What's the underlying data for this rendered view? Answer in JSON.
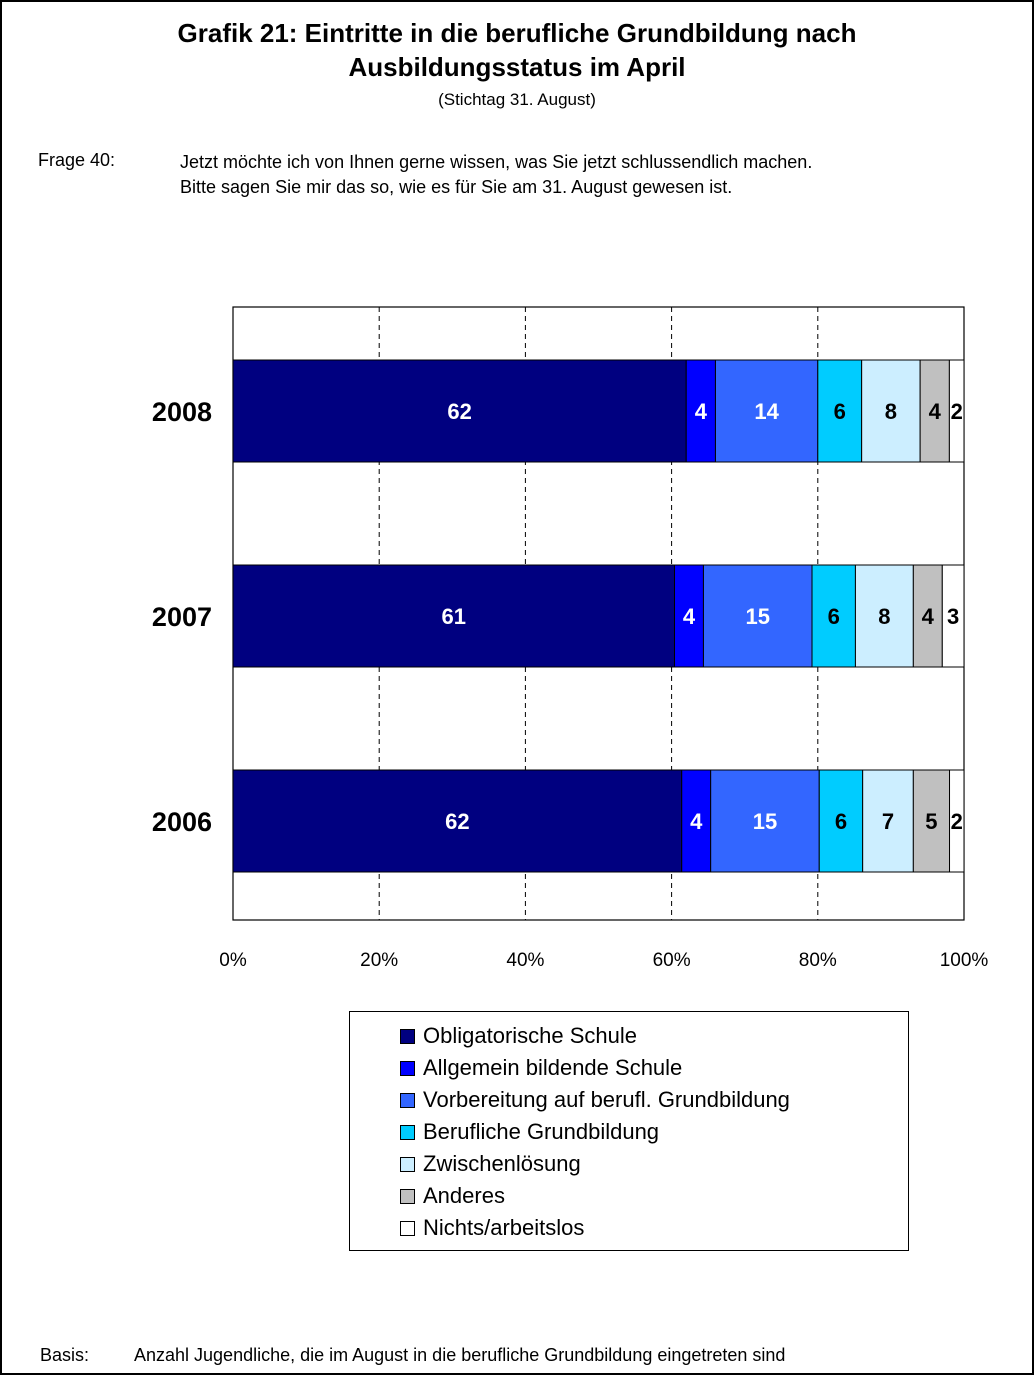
{
  "title_line1": "Grafik 21: Eintritte in die berufliche Grundbildung nach",
  "title_line2": "Ausbildungsstatus im April",
  "subtitle": "(Stichtag 31. August)",
  "question": {
    "label": "Frage 40:",
    "line1": "Jetzt möchte ich von Ihnen gerne wissen, was Sie jetzt schlussendlich machen.",
    "line2": "Bitte sagen Sie mir das so, wie es für Sie am 31. August gewesen ist."
  },
  "footer": {
    "label": "Basis:",
    "text": "Anzahl Jugendliche, die im August in die berufliche Grundbildung eingetreten sind"
  },
  "chart_data": {
    "type": "bar",
    "orientation": "horizontal",
    "stacked": "percent",
    "categories": [
      "2008",
      "2007",
      "2006"
    ],
    "series": [
      {
        "name": "Obligatorische Schule",
        "values": [
          62,
          61,
          62
        ],
        "color": "#000080",
        "label_color": "#ffffff"
      },
      {
        "name": "Allgemein bildende Schule",
        "values": [
          4,
          4,
          4
        ],
        "color": "#0000ff",
        "label_color": "#ffffff"
      },
      {
        "name": "Vorbereitung auf berufl. Grundbildung",
        "values": [
          14,
          15,
          15
        ],
        "color": "#3366ff",
        "label_color": "#ffffff"
      },
      {
        "name": "Berufliche Grundbildung",
        "values": [
          6,
          6,
          6
        ],
        "color": "#00ccff",
        "label_color": "#000000"
      },
      {
        "name": "Zwischenlösung",
        "values": [
          8,
          8,
          7
        ],
        "color": "#cceeff",
        "label_color": "#000000"
      },
      {
        "name": "Anderes",
        "values": [
          4,
          4,
          5
        ],
        "color": "#c0c0c0",
        "label_color": "#000000"
      },
      {
        "name": "Nichts/arbeitslos",
        "values": [
          2,
          3,
          2
        ],
        "color": "#ffffff",
        "label_color": "#000000"
      }
    ],
    "xlim": [
      0,
      100
    ],
    "xticks": [
      "0%",
      "20%",
      "40%",
      "60%",
      "80%",
      "100%"
    ],
    "grid": "vertical dashed",
    "legend": "bottom"
  }
}
